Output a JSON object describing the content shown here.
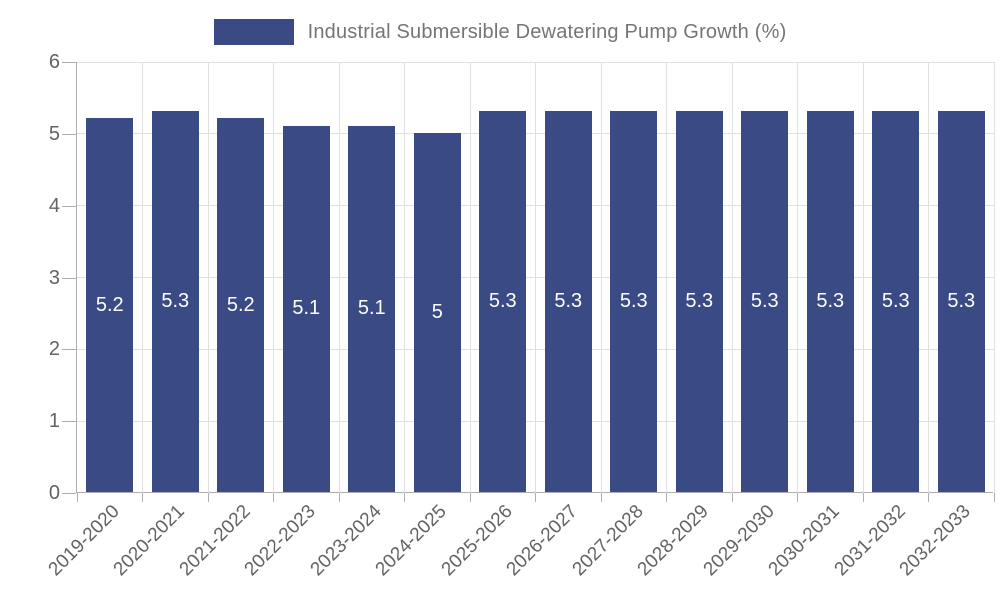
{
  "legend": {
    "label": "Industrial Submersible Dewatering Pump Growth (%)",
    "swatch_color": "#3a4a85"
  },
  "chart_data": {
    "type": "bar",
    "title": "Industrial Submersible Dewatering Pump Growth (%)",
    "categories": [
      "2019-2020",
      "2020-2021",
      "2021-2022",
      "2022-2023",
      "2023-2024",
      "2024-2025",
      "2025-2026",
      "2026-2027",
      "2027-2028",
      "2028-2029",
      "2029-2030",
      "2030-2031",
      "2031-2032",
      "2032-2033"
    ],
    "values": [
      5.2,
      5.3,
      5.2,
      5.1,
      5.1,
      5,
      5.3,
      5.3,
      5.3,
      5.3,
      5.3,
      5.3,
      5.3,
      5.3
    ],
    "bar_labels": [
      "5.2",
      "5.3",
      "5.2",
      "5.1",
      "5.1",
      "5",
      "5.3",
      "5.3",
      "5.3",
      "5.3",
      "5.3",
      "5.3",
      "5.3",
      "5.3"
    ],
    "xlabel": "",
    "ylabel": "",
    "ylim": [
      0,
      6
    ],
    "yticks": [
      0,
      1,
      2,
      3,
      4,
      5,
      6
    ],
    "grid": true,
    "legend_position": "top",
    "bar_color": "#3a4a85",
    "bar_value_label_color": "#ffffff",
    "gridline_color": "#e0e0e0",
    "axis_color": "#adadad",
    "tick_label_color": "#636363"
  }
}
